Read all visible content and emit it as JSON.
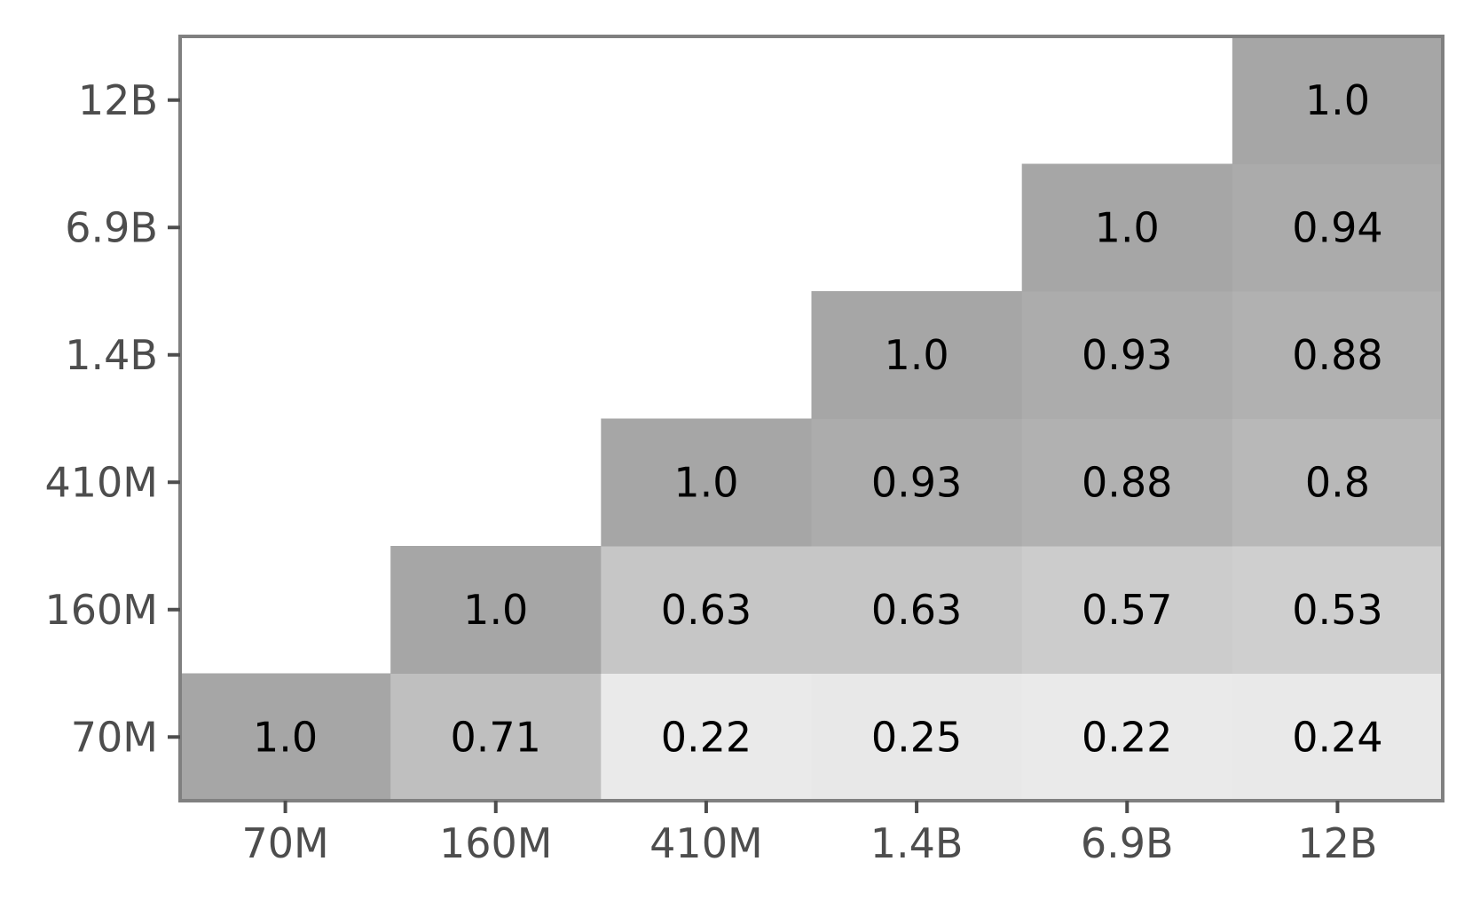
{
  "chart_data": {
    "type": "heatmap",
    "title": "",
    "xlabel": "",
    "ylabel": "",
    "x_categories": [
      "70M",
      "160M",
      "410M",
      "1.4B",
      "6.9B",
      "12B"
    ],
    "y_categories": [
      "70M",
      "160M",
      "410M",
      "1.4B",
      "6.9B",
      "12B"
    ],
    "cells": [
      {
        "x": "70M",
        "y": "70M",
        "value": 1.0,
        "label": "1.0"
      },
      {
        "x": "160M",
        "y": "70M",
        "value": 0.71,
        "label": "0.71"
      },
      {
        "x": "410M",
        "y": "70M",
        "value": 0.22,
        "label": "0.22"
      },
      {
        "x": "1.4B",
        "y": "70M",
        "value": 0.25,
        "label": "0.25"
      },
      {
        "x": "6.9B",
        "y": "70M",
        "value": 0.22,
        "label": "0.22"
      },
      {
        "x": "12B",
        "y": "70M",
        "value": 0.24,
        "label": "0.24"
      },
      {
        "x": "160M",
        "y": "160M",
        "value": 1.0,
        "label": "1.0"
      },
      {
        "x": "410M",
        "y": "160M",
        "value": 0.63,
        "label": "0.63"
      },
      {
        "x": "1.4B",
        "y": "160M",
        "value": 0.63,
        "label": "0.63"
      },
      {
        "x": "6.9B",
        "y": "160M",
        "value": 0.57,
        "label": "0.57"
      },
      {
        "x": "12B",
        "y": "160M",
        "value": 0.53,
        "label": "0.53"
      },
      {
        "x": "410M",
        "y": "410M",
        "value": 1.0,
        "label": "1.0"
      },
      {
        "x": "1.4B",
        "y": "410M",
        "value": 0.93,
        "label": "0.93"
      },
      {
        "x": "6.9B",
        "y": "410M",
        "value": 0.88,
        "label": "0.88"
      },
      {
        "x": "12B",
        "y": "410M",
        "value": 0.8,
        "label": "0.8"
      },
      {
        "x": "1.4B",
        "y": "1.4B",
        "value": 1.0,
        "label": "1.0"
      },
      {
        "x": "6.9B",
        "y": "1.4B",
        "value": 0.93,
        "label": "0.93"
      },
      {
        "x": "12B",
        "y": "1.4B",
        "value": 0.88,
        "label": "0.88"
      },
      {
        "x": "6.9B",
        "y": "6.9B",
        "value": 1.0,
        "label": "1.0"
      },
      {
        "x": "12B",
        "y": "6.9B",
        "value": 0.94,
        "label": "0.94"
      },
      {
        "x": "12B",
        "y": "12B",
        "value": 1.0,
        "label": "1.0"
      }
    ],
    "color_scale": {
      "low": "#ececec",
      "high": "#a6a6a6"
    },
    "colors": {
      "frame": "#808080",
      "tick": "#4d4d4d",
      "cell_text": "#000000",
      "background": "#ffffff"
    },
    "grid": false,
    "legend": "none"
  }
}
